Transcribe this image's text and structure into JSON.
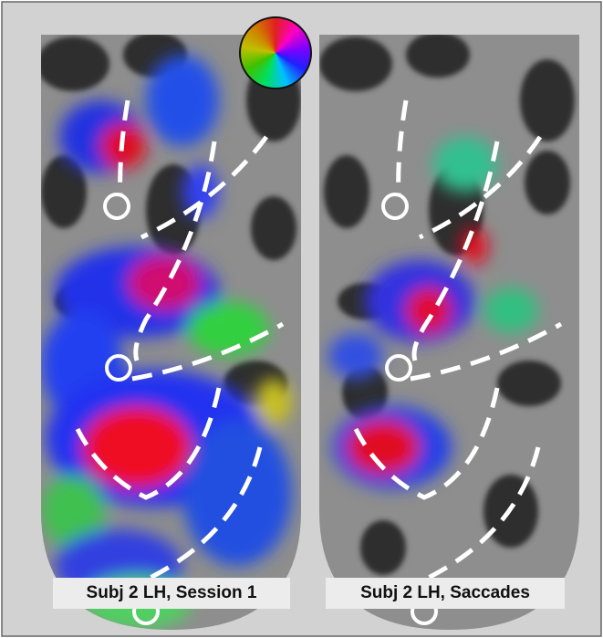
{
  "panels": [
    {
      "label": "Subj 2 LH, Session 1"
    },
    {
      "label": "Subj 2 LH, Saccades"
    }
  ]
}
